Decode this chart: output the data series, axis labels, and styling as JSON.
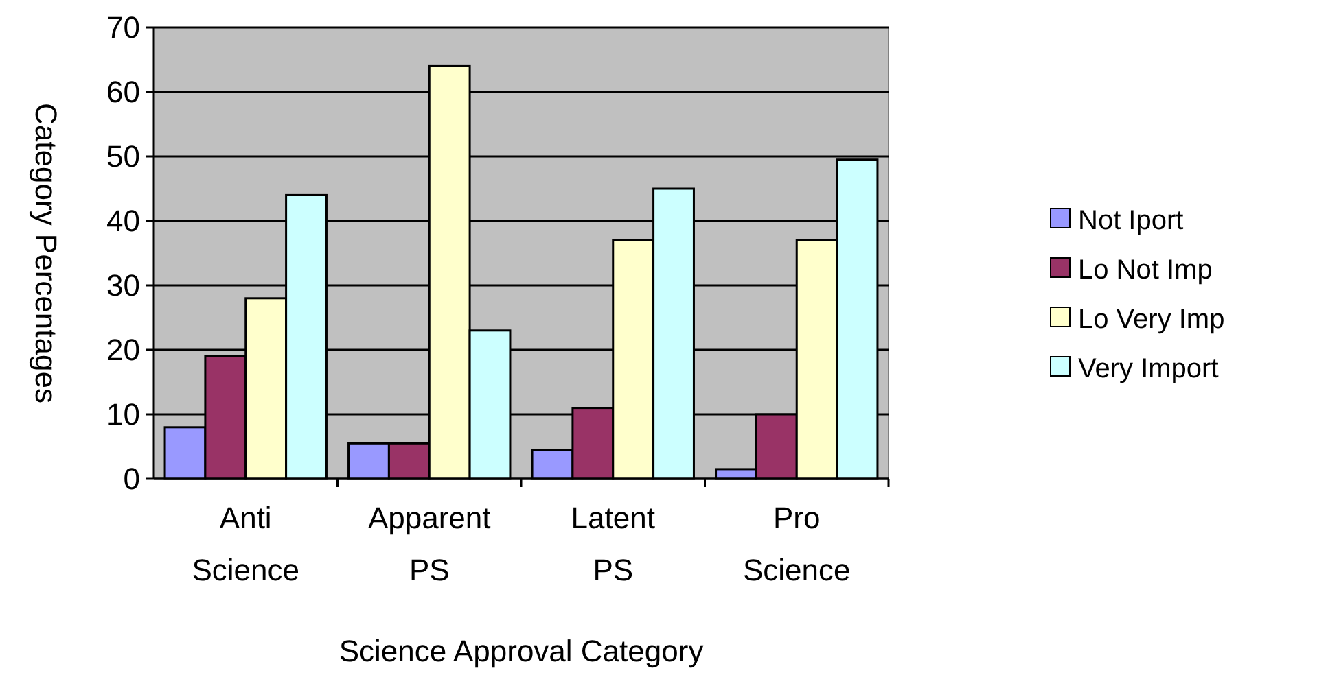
{
  "chart_data": {
    "type": "bar",
    "xlabel": "Science Approval Category",
    "ylabel": "Category Percentages",
    "categories": [
      "Anti Science",
      "Apparent PS",
      "Latent PS",
      "Pro Science"
    ],
    "series": [
      {
        "name": "Not Iport",
        "color": "#9999ff",
        "values": [
          8,
          5.5,
          4.5,
          1.5
        ]
      },
      {
        "name": "Lo Not Imp",
        "color": "#993366",
        "values": [
          19,
          5.5,
          11,
          10
        ]
      },
      {
        "name": "Lo Very Imp",
        "color": "#ffffcc",
        "values": [
          28,
          64,
          37,
          37
        ]
      },
      {
        "name": "Very Import",
        "color": "#ccffff",
        "values": [
          44,
          23,
          45,
          49.5
        ]
      }
    ],
    "ylim": [
      0,
      70
    ],
    "yticks": [
      0,
      10,
      20,
      30,
      40,
      50,
      60,
      70
    ],
    "grid": "y",
    "legend": "right"
  }
}
